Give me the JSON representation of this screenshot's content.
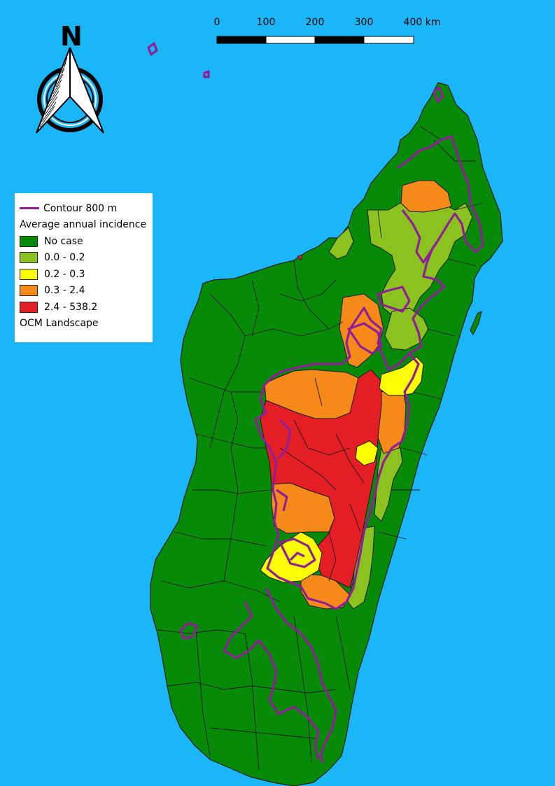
{
  "north_arrow": {
    "label": "N",
    "icon": "north-arrow-icon"
  },
  "scale_bar": {
    "ticks": [
      "0",
      "100",
      "200",
      "300",
      "400 km"
    ],
    "unit": "km"
  },
  "legend": {
    "contour_label": "Contour 800 m",
    "title": "Average annual incidence",
    "classes": [
      {
        "label": "No case",
        "color": "#078a07"
      },
      {
        "label": "0.0 - 0.2",
        "color": "#8cc21f"
      },
      {
        "label": "0.2 - 0.3",
        "color": "#fcfc03"
      },
      {
        "label": "0.3 - 2.4",
        "color": "#f58a1a"
      },
      {
        "label": "2.4 - 538.2",
        "color": "#e41e25"
      }
    ],
    "basemap_label": "OCM Landscape"
  },
  "colors": {
    "sea": "#1ab6f7",
    "contour": "#8f1f96",
    "boundary": "#1a1a1a"
  }
}
